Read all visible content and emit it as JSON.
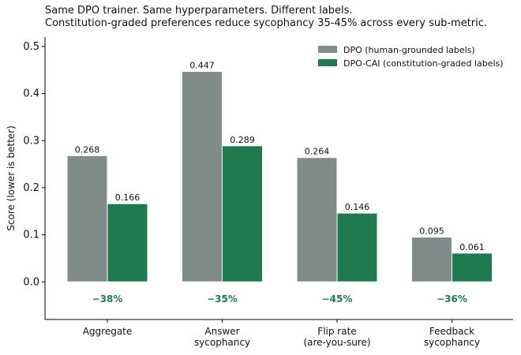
{
  "chart_data": {
    "type": "bar",
    "title": "Same DPO trainer. Same hyperparameters. Different labels.",
    "subtitle": "Constitution-graded preferences reduce sycophancy 35-45% across every sub-metric.",
    "xlabel": "",
    "ylabel": "Score (lower is better)",
    "ylim": [
      -0.08,
      0.52
    ],
    "yticks": [
      "0.0",
      "0.1",
      "0.2",
      "0.3",
      "0.4",
      "0.5"
    ],
    "categories": [
      [
        "Aggregate"
      ],
      [
        "Answer",
        "sycophancy"
      ],
      [
        "Flip rate",
        "(are-you-sure)"
      ],
      [
        "Feedback",
        "sycophancy"
      ]
    ],
    "series": [
      {
        "name": "DPO (human-grounded labels)",
        "color": "#808c8a",
        "values": [
          0.268,
          0.447,
          0.264,
          0.095
        ],
        "labels": [
          "0.268",
          "0.447",
          "0.264",
          "0.095"
        ]
      },
      {
        "name": "DPO-CAI (constitution-graded labels)",
        "color": "#1f7a4d",
        "values": [
          0.166,
          0.289,
          0.146,
          0.061
        ],
        "labels": [
          "0.166",
          "0.289",
          "0.146",
          "0.061"
        ]
      }
    ],
    "annotations": [
      "−38%",
      "−35%",
      "−45%",
      "−36%"
    ],
    "annotation_color": "#1f7a4d",
    "legend_position": "top-right",
    "grid": false
  }
}
